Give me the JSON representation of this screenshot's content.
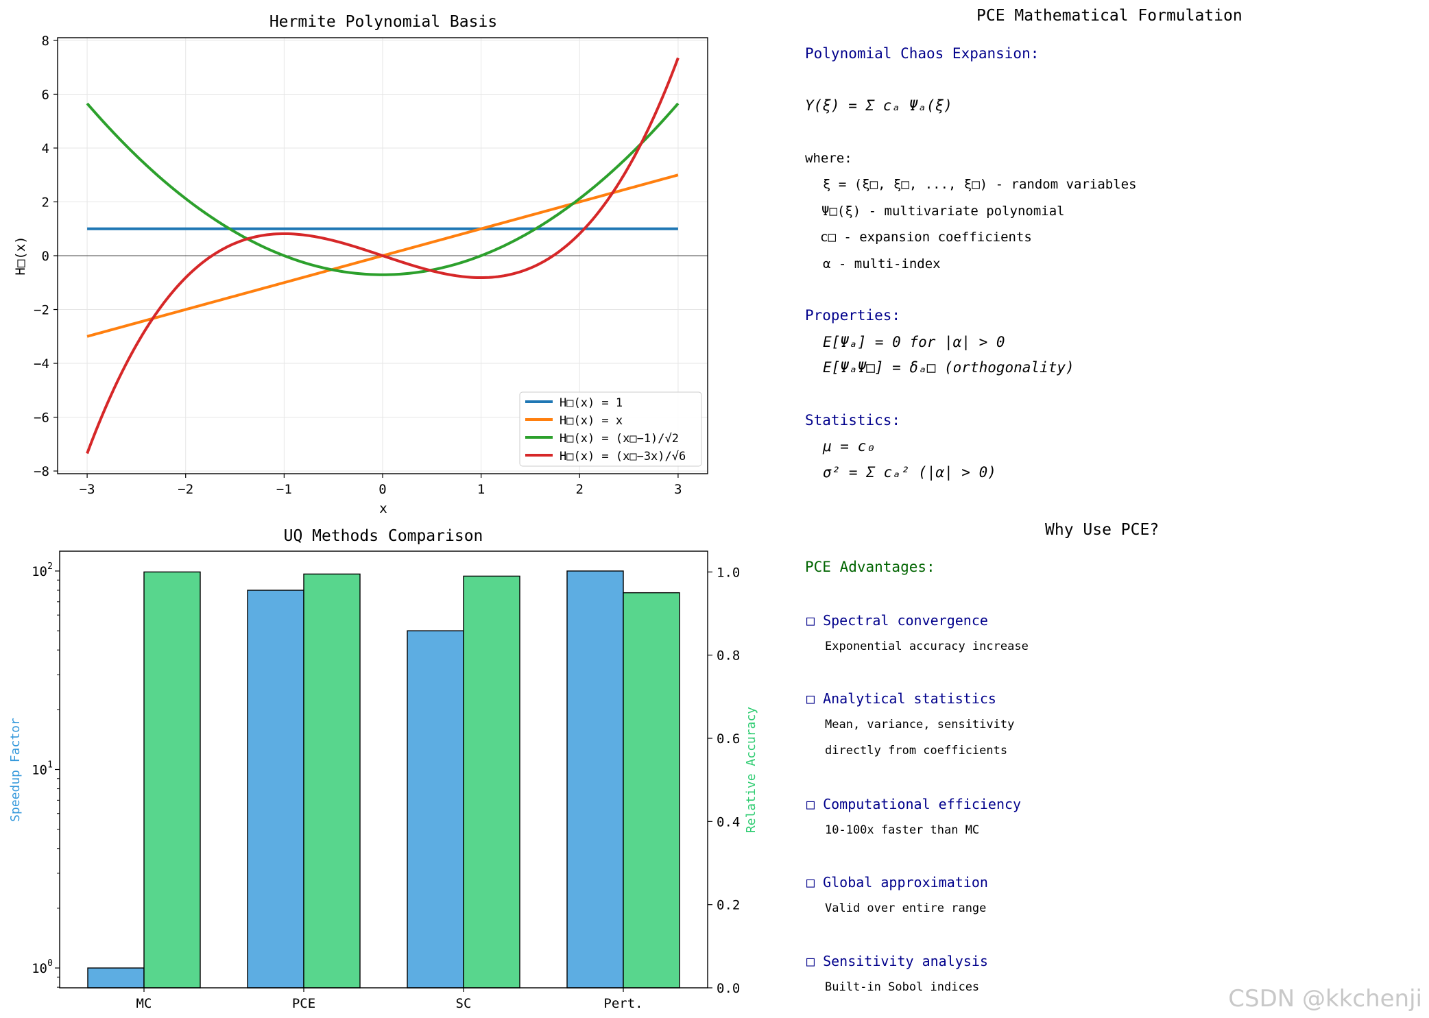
{
  "chart_data": [
    {
      "type": "line",
      "title": "Hermite Polynomial Basis",
      "xlabel": "x",
      "ylabel": "H□(x)",
      "xlim": [
        -3.3,
        3.3
      ],
      "ylim": [
        -8.1,
        8.1
      ],
      "xticks": [
        -3,
        -2,
        -1,
        0,
        1,
        2,
        3
      ],
      "yticks": [
        -8,
        -6,
        -4,
        -2,
        0,
        2,
        4,
        6,
        8
      ],
      "xtick_labels": [
        "−3",
        "−2",
        "−1",
        "0",
        "1",
        "2",
        "3"
      ],
      "ytick_labels": [
        "−8",
        "−6",
        "−4",
        "−2",
        "0",
        "2",
        "4",
        "6",
        "8"
      ],
      "grid": true,
      "legend_position": "lower-right",
      "series": [
        {
          "name": "H□(x) = 1",
          "color": "#1f77b4",
          "formula": "1"
        },
        {
          "name": "H□(x) = x",
          "color": "#ff7f0e",
          "formula": "x"
        },
        {
          "name": "H□(x) = (x□−1)/√2",
          "color": "#2ca02c",
          "formula": "(x^2-1)/sqrt(2)"
        },
        {
          "name": "H□(x) = (x□−3x)/√6",
          "color": "#d62728",
          "formula": "(x^3-3x)/sqrt(6)"
        }
      ]
    },
    {
      "type": "bar",
      "title": "UQ Methods Comparison",
      "categories": [
        "MC",
        "PCE",
        "SC",
        "Pert."
      ],
      "y_left_label": "Speedup Factor",
      "y_left_scale": "log",
      "y_left_ticks": [
        "10",
        "10",
        "10"
      ],
      "y_left_tick_exponents": [
        "0",
        "1",
        "2"
      ],
      "y_right_label": "Relative Accuracy",
      "y_right_ticks": [
        "0.0",
        "0.2",
        "0.4",
        "0.6",
        "0.8",
        "1.0"
      ],
      "y_right_lim": [
        0,
        1.0
      ],
      "series": [
        {
          "name": "Speedup Factor",
          "color": "#5dade2",
          "values": [
            1,
            80,
            50,
            100
          ]
        },
        {
          "name": "Relative Accuracy",
          "color": "#58d68d",
          "values": [
            1.0,
            0.995,
            0.99,
            0.95
          ]
        }
      ]
    }
  ],
  "formulation": {
    "title": "PCE Mathematical Formulation",
    "heading1": "Polynomial Chaos Expansion:",
    "equation": "Y(ξ) = Σ cₐ Ψₐ(ξ)",
    "where": "where:",
    "line1": "ξ = (ξ□, ξ□, ..., ξ□) - random variables",
    "line2": "Ψ□(ξ) - multivariate polynomial",
    "line3": "c□ - expansion coefficients",
    "line4": "α - multi-index",
    "heading2": "Properties:",
    "prop1": "E[Ψₐ] = 0 for |α| > 0",
    "prop2": "E[ΨₐΨ□] = δₐ□ (orthogonality)",
    "heading3": "Statistics:",
    "stat1": "μ = c₀",
    "stat2": "σ² = Σ cₐ² (|α| > 0)"
  },
  "why": {
    "title": "Why Use PCE?",
    "heading": "PCE Advantages:",
    "items": [
      {
        "label": "□ Spectral convergence",
        "desc1": "Exponential accuracy increase",
        "desc2": ""
      },
      {
        "label": "□ Analytical statistics",
        "desc1": "Mean, variance, sensitivity",
        "desc2": "directly from coefficients"
      },
      {
        "label": "□ Computational efficiency",
        "desc1": "10-100x faster than MC",
        "desc2": ""
      },
      {
        "label": "□ Global approximation",
        "desc1": "Valid over entire range",
        "desc2": ""
      },
      {
        "label": "□ Sensitivity analysis",
        "desc1": "Built-in Sobol indices",
        "desc2": ""
      }
    ]
  },
  "watermark": "CSDN @kkchenji"
}
